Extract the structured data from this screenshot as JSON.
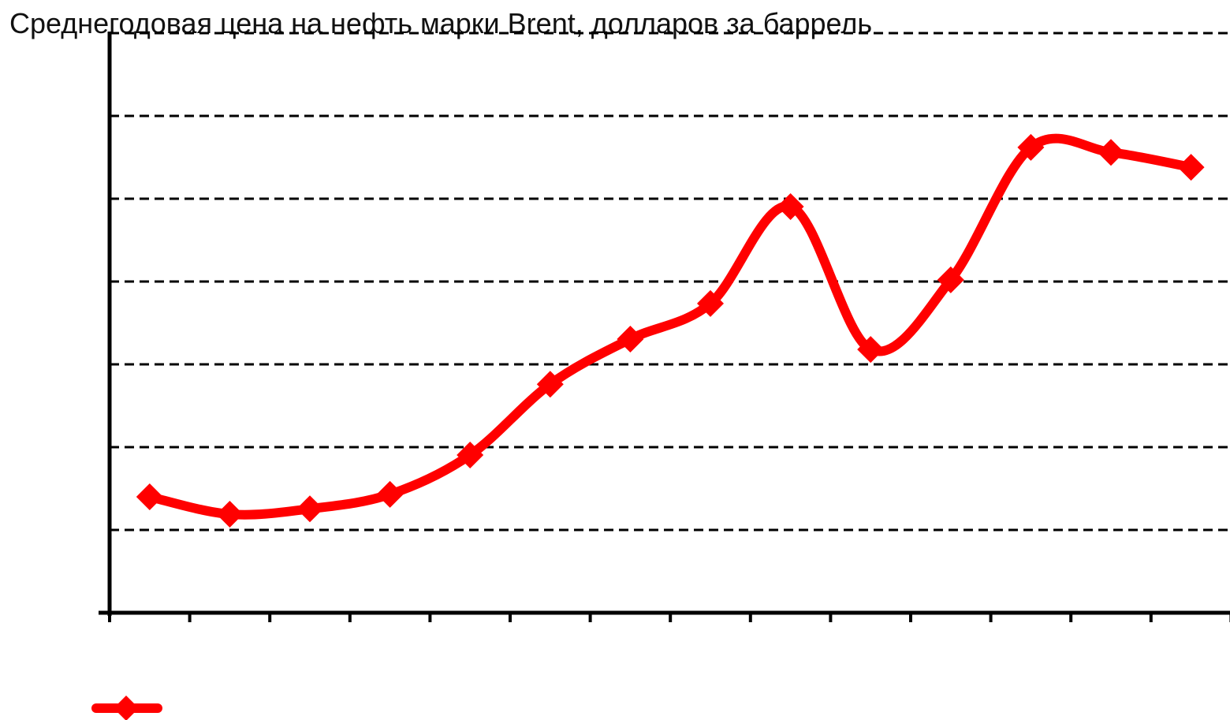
{
  "chart_data": {
    "type": "line",
    "title": "Среднегодовая цена на нефть марки Brent, долларов за баррель",
    "categories": [
      null,
      null,
      null,
      null,
      null,
      null,
      null,
      null,
      null,
      null,
      null,
      null,
      null,
      null
    ],
    "series": [
      {
        "color": "#ff0000",
        "values": [
          28.0,
          23.8,
          25.1,
          28.6,
          38.1,
          55.2,
          66.1,
          74.7,
          98.1,
          63.6,
          80.4,
          112.4,
          111.2,
          107.6
        ]
      }
    ],
    "ylim": [
      0,
      140
    ],
    "yticks": [
      20,
      40,
      60,
      80,
      100,
      120,
      140
    ],
    "grid": true
  }
}
